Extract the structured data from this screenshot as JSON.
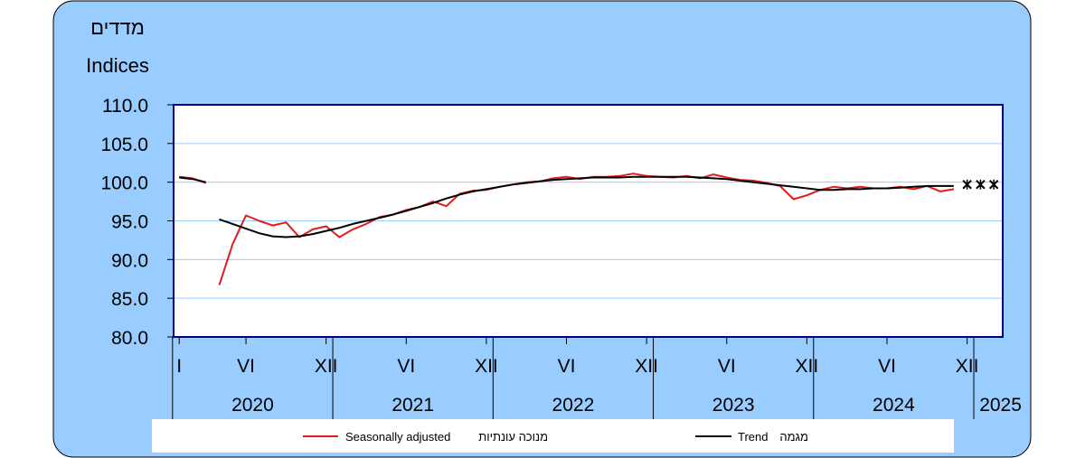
{
  "chart_data": {
    "type": "line",
    "title": "",
    "ylabel_hebrew": "מדדים",
    "ylabel": "Indices",
    "ylim": [
      80,
      110
    ],
    "y_ticks": [
      "80.0",
      "85.0",
      "90.0",
      "95.0",
      "100.0",
      "105.0",
      "110.0"
    ],
    "x_month_ticks": [
      {
        "month": 1,
        "label": "I"
      },
      {
        "month": 6,
        "label": "VI"
      },
      {
        "month": 12,
        "label": "XII"
      },
      {
        "month": 18,
        "label": "VI"
      },
      {
        "month": 24,
        "label": "XII"
      },
      {
        "month": 30,
        "label": "VI"
      },
      {
        "month": 36,
        "label": "XII"
      },
      {
        "month": 42,
        "label": "VI"
      },
      {
        "month": 48,
        "label": "XII"
      },
      {
        "month": 54,
        "label": "VI"
      },
      {
        "month": 60,
        "label": "XII"
      }
    ],
    "years": [
      "2020",
      "2021",
      "2022",
      "2023",
      "2024",
      "2025"
    ],
    "grid": true,
    "legend_position": "bottom",
    "series": [
      {
        "name": "Seasonally adjusted",
        "name_hebrew": "מנוכה עונתיות",
        "color": "#e41a1c",
        "segments": [
          [
            [
              1,
              100.7
            ],
            [
              2,
              100.5
            ],
            [
              3,
              99.9
            ]
          ],
          [
            [
              4,
              86.7
            ],
            [
              5,
              92.0
            ],
            [
              6,
              95.7
            ],
            [
              7,
              95.0
            ],
            [
              8,
              94.4
            ],
            [
              9,
              94.8
            ],
            [
              10,
              92.9
            ],
            [
              11,
              93.9
            ],
            [
              12,
              94.3
            ],
            [
              13,
              92.9
            ],
            [
              14,
              93.9
            ],
            [
              15,
              94.6
            ],
            [
              16,
              95.5
            ],
            [
              17,
              95.8
            ],
            [
              18,
              96.4
            ],
            [
              19,
              96.8
            ],
            [
              20,
              97.5
            ],
            [
              21,
              96.9
            ],
            [
              22,
              98.5
            ],
            [
              23,
              98.9
            ],
            [
              24,
              99.0
            ],
            [
              25,
              99.4
            ],
            [
              26,
              99.7
            ],
            [
              27,
              100.0
            ],
            [
              28,
              100.1
            ],
            [
              29,
              100.5
            ],
            [
              30,
              100.7
            ],
            [
              31,
              100.4
            ],
            [
              32,
              100.7
            ],
            [
              33,
              100.7
            ],
            [
              34,
              100.8
            ],
            [
              35,
              101.1
            ],
            [
              36,
              100.8
            ],
            [
              37,
              100.7
            ],
            [
              38,
              100.6
            ],
            [
              39,
              100.8
            ],
            [
              40,
              100.5
            ],
            [
              41,
              101.0
            ],
            [
              42,
              100.6
            ],
            [
              43,
              100.3
            ],
            [
              44,
              100.2
            ],
            [
              45,
              99.9
            ],
            [
              46,
              99.5
            ],
            [
              47,
              97.8
            ],
            [
              48,
              98.3
            ],
            [
              49,
              99.0
            ],
            [
              50,
              99.4
            ],
            [
              51,
              99.2
            ],
            [
              52,
              99.4
            ],
            [
              53,
              99.2
            ],
            [
              54,
              99.2
            ],
            [
              55,
              99.4
            ],
            [
              56,
              99.1
            ],
            [
              57,
              99.5
            ],
            [
              58,
              98.8
            ],
            [
              59,
              99.1
            ]
          ]
        ]
      },
      {
        "name": "Trend",
        "name_hebrew": "מגמה",
        "color": "#000000",
        "segments": [
          [
            [
              1,
              100.6
            ],
            [
              2,
              100.4
            ],
            [
              3,
              100.0
            ]
          ],
          [
            [
              4,
              95.2
            ],
            [
              5,
              94.6
            ],
            [
              6,
              94.0
            ],
            [
              7,
              93.4
            ],
            [
              8,
              93.0
            ],
            [
              9,
              92.9
            ],
            [
              10,
              93.0
            ],
            [
              11,
              93.3
            ],
            [
              12,
              93.7
            ],
            [
              13,
              94.1
            ],
            [
              14,
              94.6
            ],
            [
              15,
              95.0
            ],
            [
              16,
              95.4
            ],
            [
              17,
              95.8
            ],
            [
              18,
              96.3
            ],
            [
              19,
              96.8
            ],
            [
              20,
              97.3
            ],
            [
              21,
              97.9
            ],
            [
              22,
              98.4
            ],
            [
              23,
              98.8
            ],
            [
              24,
              99.1
            ],
            [
              25,
              99.4
            ],
            [
              26,
              99.7
            ],
            [
              27,
              99.9
            ],
            [
              28,
              100.1
            ],
            [
              29,
              100.3
            ],
            [
              30,
              100.4
            ],
            [
              31,
              100.5
            ],
            [
              32,
              100.6
            ],
            [
              33,
              100.6
            ],
            [
              34,
              100.6
            ],
            [
              35,
              100.7
            ],
            [
              36,
              100.7
            ],
            [
              37,
              100.7
            ],
            [
              38,
              100.7
            ],
            [
              39,
              100.7
            ],
            [
              40,
              100.6
            ],
            [
              41,
              100.5
            ],
            [
              42,
              100.4
            ],
            [
              43,
              100.2
            ],
            [
              44,
              100.0
            ],
            [
              45,
              99.8
            ],
            [
              46,
              99.6
            ],
            [
              47,
              99.4
            ],
            [
              48,
              99.2
            ],
            [
              49,
              99.0
            ],
            [
              50,
              99.0
            ],
            [
              51,
              99.1
            ],
            [
              52,
              99.1
            ],
            [
              53,
              99.2
            ],
            [
              54,
              99.2
            ],
            [
              55,
              99.3
            ],
            [
              56,
              99.4
            ],
            [
              57,
              99.5
            ],
            [
              58,
              99.5
            ],
            [
              59,
              99.5
            ]
          ]
        ],
        "projected_markers": [
          [
            60,
            99.7
          ],
          [
            61,
            99.7
          ],
          [
            62,
            99.7
          ]
        ]
      }
    ]
  },
  "legend": {
    "seasonal_en": "Seasonally adjusted",
    "seasonal_he": "מנוכה עונתיות",
    "trend_en": "Trend",
    "trend_he": "מגמה"
  },
  "colors": {
    "background": "#99ccff",
    "plot_background": "#ffffff",
    "plot_border": "#000080",
    "gridline": "#99ccff",
    "seasonal": "#e41a1c",
    "trend": "#000000"
  }
}
